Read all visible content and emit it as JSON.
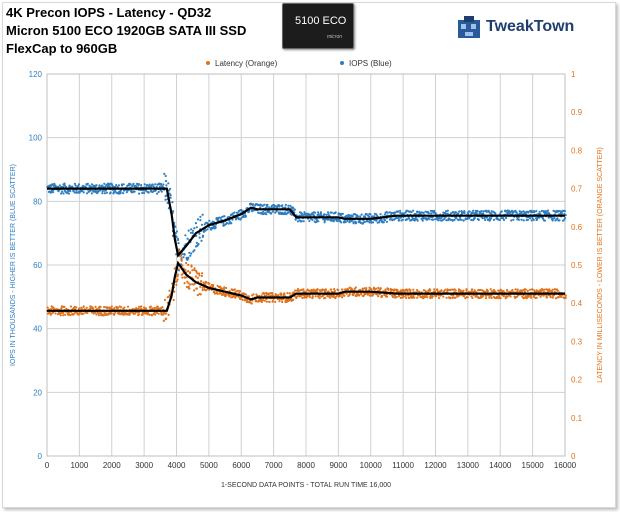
{
  "header": {
    "title_line1": "4K Precon IOPS - Latency - QD32",
    "title_line2": "Micron 5100 ECO 1920GB SATA III SSD",
    "title_line3": "FlexCap to 960GB",
    "product_label": "5100 ECO",
    "product_brand": "micron",
    "logo_text": "TweakTown"
  },
  "colors": {
    "iops": "#2E7EC0",
    "latency": "#E0731C",
    "trend": "#000000",
    "grid": "#d0d0d0"
  },
  "chart_data": {
    "type": "scatter",
    "title": "4K Precon IOPS - Latency - QD32",
    "legend": [
      "Latency (Orange)",
      "IOPS (Blue)"
    ],
    "legend_position": "top-center",
    "xlabel": "1-SECOND DATA POINTS - TOTAL RUN TIME 16,000",
    "ylabel_left": "IOPS IN THOUSANDS - HIGHER IS BETTER (BLUE SCATTER)",
    "ylabel_right": "LATENCY IN MILLISECONDS - LOWER IS BETTER (ORANGE SCATTER)",
    "xlim": [
      0,
      16000
    ],
    "ylim_left": [
      0,
      120
    ],
    "ylim_right": [
      0,
      1
    ],
    "xticks": [
      "0",
      "1000",
      "2000",
      "3000",
      "4000",
      "5000",
      "6000",
      "7000",
      "8000",
      "9000",
      "10000",
      "11000",
      "12000",
      "13000",
      "14000",
      "15000",
      "16000"
    ],
    "yticks_left": [
      "0",
      "20",
      "40",
      "60",
      "80",
      "100",
      "120"
    ],
    "yticks_right": [
      "0",
      "0.1",
      "0.2",
      "0.3",
      "0.4",
      "0.5",
      "0.6",
      "0.7",
      "0.8",
      "0.9",
      "1"
    ],
    "grid": true,
    "series": [
      {
        "name": "IOPS (Blue)",
        "axis": "left",
        "x": [
          0,
          1000,
          2000,
          3000,
          3700,
          3850,
          3950,
          4050,
          4300,
          4600,
          5000,
          5500,
          6000,
          6300,
          6500,
          7000,
          7500,
          7700,
          8000,
          9000,
          9200,
          10000,
          10800,
          11000,
          12000,
          13000,
          14000,
          15000,
          16000
        ],
        "y": [
          84,
          84,
          84,
          84,
          84,
          76,
          68,
          63,
          66,
          70,
          72.5,
          74,
          76,
          78,
          77.5,
          77.5,
          77.5,
          75,
          75,
          75,
          74.5,
          74.5,
          75.5,
          75.5,
          75.5,
          75.5,
          75.5,
          75.5,
          75.5
        ]
      },
      {
        "name": "Latency (Orange)",
        "axis": "right",
        "x": [
          0,
          1000,
          2000,
          3000,
          3700,
          3850,
          3950,
          4050,
          4300,
          4600,
          5000,
          5500,
          6000,
          6300,
          6500,
          7000,
          7500,
          7700,
          8000,
          9000,
          9200,
          10000,
          10800,
          11000,
          12000,
          13000,
          14000,
          15000,
          16000
        ],
        "y": [
          0.38,
          0.38,
          0.38,
          0.38,
          0.38,
          0.42,
          0.47,
          0.505,
          0.475,
          0.455,
          0.44,
          0.43,
          0.42,
          0.41,
          0.415,
          0.415,
          0.415,
          0.425,
          0.425,
          0.425,
          0.43,
          0.43,
          0.425,
          0.425,
          0.425,
          0.425,
          0.425,
          0.425,
          0.425
        ]
      }
    ]
  }
}
